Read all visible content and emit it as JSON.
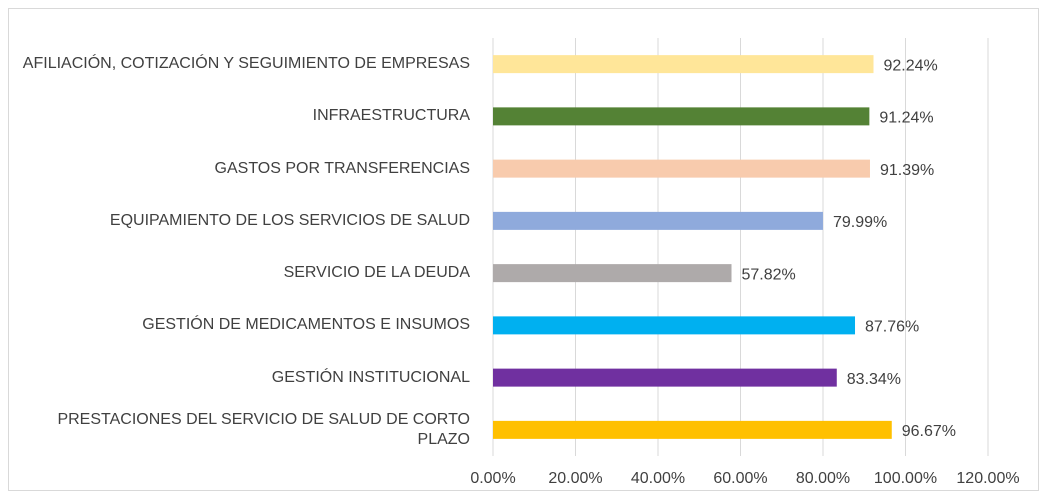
{
  "chart_data": {
    "type": "bar",
    "orientation": "horizontal",
    "categories": [
      "AFILIACIÓN, COTIZACIÓN Y SEGUIMIENTO DE EMPRESAS",
      "INFRAESTRUCTURA",
      "GASTOS POR TRANSFERENCIAS",
      "EQUIPAMIENTO DE LOS SERVICIOS DE SALUD",
      "SERVICIO DE LA DEUDA",
      "GESTIÓN DE MEDICAMENTOS E INSUMOS",
      "GESTIÓN INSTITUCIONAL",
      "PRESTACIONES DEL SERVICIO DE SALUD DE CORTO PLAZO"
    ],
    "values": [
      92.24,
      91.24,
      91.39,
      79.99,
      57.82,
      87.76,
      83.34,
      96.67
    ],
    "value_labels": [
      "92.24%",
      "91.24%",
      "91.39%",
      "79.99%",
      "57.82%",
      "87.76%",
      "83.34%",
      "96.67%"
    ],
    "colors": [
      "#ffe699",
      "#548235",
      "#f8cbad",
      "#8faadc",
      "#aeaaaa",
      "#00b0f0",
      "#7030a0",
      "#ffc000"
    ],
    "xlim": [
      0,
      120
    ],
    "xticks": [
      {
        "value": 0,
        "label": "0.00%"
      },
      {
        "value": 20,
        "label": "20.00%"
      },
      {
        "value": 40,
        "label": "40.00%"
      },
      {
        "value": 60,
        "label": "60.00%"
      },
      {
        "value": 80,
        "label": "80.00%"
      },
      {
        "value": 100,
        "label": "100.00%"
      },
      {
        "value": 120,
        "label": "120.00%"
      }
    ],
    "grid": true
  }
}
